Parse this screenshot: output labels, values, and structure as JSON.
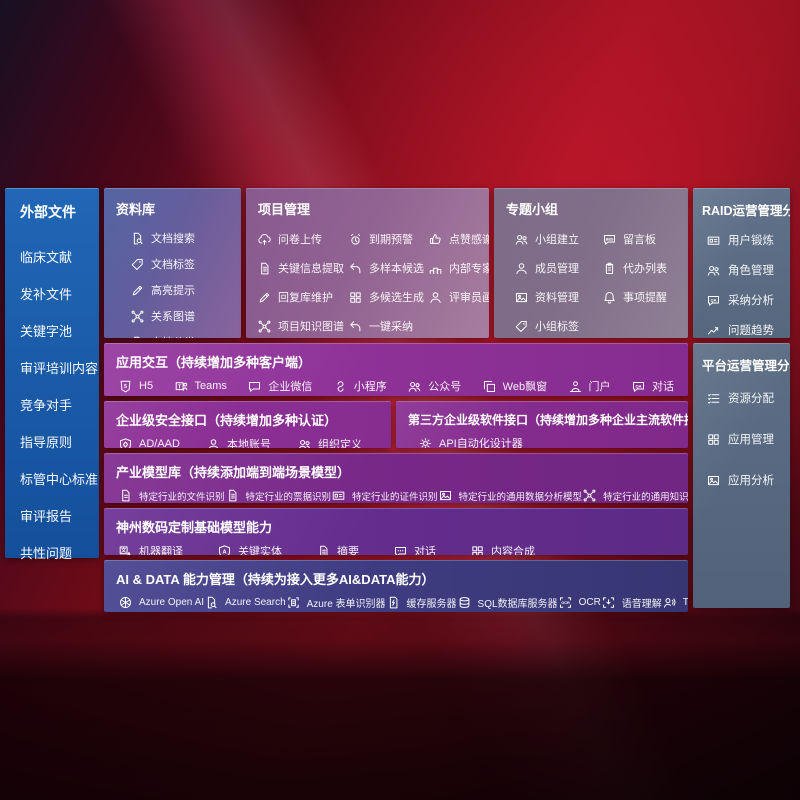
{
  "palette": {
    "background_red": "#9c1322",
    "sidebar_blue": "#1d5fae",
    "top_band_blue_purple": "#47589b",
    "top_band_mauve": "#8a5f8f",
    "top_band_gray": "#7d6e86",
    "slate_panel": "#5b6c84",
    "purple_row": "#8a3396",
    "deep_purple_row": "#6b2f93",
    "indigo_row": "#3f3d85",
    "text": "#ffffff"
  },
  "left_sidebar": {
    "title": "外部文件",
    "items": [
      "临床文献",
      "发补文件",
      "关键字池",
      "审评培训内容",
      "竞争对手",
      "指导原则",
      "标管中心标准",
      "审评报告",
      "共性问题"
    ]
  },
  "top_sections": [
    {
      "title": "资料库",
      "items": [
        {
          "label": "文档搜索",
          "icon": "doc-search"
        },
        {
          "label": "文档标签",
          "icon": "doc-tag"
        },
        {
          "label": "高亮提示",
          "icon": "highlight-pen"
        },
        {
          "label": "关系图谱",
          "icon": "relation-graph"
        },
        {
          "label": "文档分类",
          "icon": "doc-classify"
        }
      ]
    },
    {
      "title": "项目管理",
      "items": [
        {
          "label": "问卷上传",
          "icon": "cloud-upload"
        },
        {
          "label": "到期预警",
          "icon": "due-alarm"
        },
        {
          "label": "点赞感谢",
          "icon": "thumbs-up"
        },
        {
          "label": "关键信息提取",
          "icon": "info-extract"
        },
        {
          "label": "多样本候选",
          "icon": "multi-sample"
        },
        {
          "label": "内部专家排名",
          "icon": "expert-ranking"
        },
        {
          "label": "回复库维护",
          "icon": "reply-maintain"
        },
        {
          "label": "多候选生成",
          "icon": "multi-generate"
        },
        {
          "label": "评审员画像",
          "icon": "reviewer-profile"
        },
        {
          "label": "项目知识图谱",
          "icon": "knowledge-graph"
        },
        {
          "label": "一键采纳",
          "icon": "one-click-adopt"
        }
      ]
    },
    {
      "title": "专题小组",
      "items": [
        {
          "label": "小组建立",
          "icon": "group-create"
        },
        {
          "label": "留言板",
          "icon": "message-board"
        },
        {
          "label": "成员管理",
          "icon": "member-manage"
        },
        {
          "label": "代办列表",
          "icon": "todo-list"
        },
        {
          "label": "资料管理",
          "icon": "material-manage"
        },
        {
          "label": "事项提醒",
          "icon": "reminder"
        },
        {
          "label": "小组标签",
          "icon": "group-tag"
        }
      ]
    }
  ],
  "right_sidebar": [
    {
      "title": "RAID运营管理分析",
      "items": [
        {
          "label": "用户锻炼",
          "icon": "user-profile-card"
        },
        {
          "label": "角色管理",
          "icon": "role-manage"
        },
        {
          "label": "采纳分析",
          "icon": "adoption-analysis"
        },
        {
          "label": "问题趋势",
          "icon": "issue-trend"
        }
      ]
    },
    {
      "title": "平台运营管理分析",
      "items": [
        {
          "label": "资源分配",
          "icon": "resource-allocation"
        },
        {
          "label": "应用管理",
          "icon": "app-manage"
        },
        {
          "label": "应用分析",
          "icon": "app-analysis"
        }
      ]
    }
  ],
  "middle_rows": [
    {
      "title": "应用交互（持续增加多种客户端）",
      "items": [
        {
          "label": "H5",
          "icon": "h5"
        },
        {
          "label": "Teams",
          "icon": "teams"
        },
        {
          "label": "企业微信",
          "icon": "wechat-work"
        },
        {
          "label": "小程序",
          "icon": "miniprogram"
        },
        {
          "label": "公众号",
          "icon": "official-account"
        },
        {
          "label": "Web飘窗",
          "icon": "web-popup"
        },
        {
          "label": "门户",
          "icon": "portal"
        },
        {
          "label": "对话",
          "icon": "dialog"
        }
      ]
    },
    {
      "title": "企业级安全接口（持续增加多种认证）",
      "items": [
        {
          "label": "AD/AAD",
          "icon": "ad-aad"
        },
        {
          "label": "本地账号",
          "icon": "local-account"
        },
        {
          "label": "组织定义",
          "icon": "org-define"
        }
      ]
    },
    {
      "title": "第三方企业级软件接口（持续增加多种企业主流软件接口）",
      "items": [
        {
          "label": "API自动化设计器",
          "icon": "api-designer"
        }
      ]
    },
    {
      "title": "产业模型库（持续添加端到端场景模型）",
      "items": [
        {
          "label": "特定行业的文件识别",
          "icon": "file-recognition"
        },
        {
          "label": "特定行业的票据识别",
          "icon": "receipt-recognition"
        },
        {
          "label": "特定行业的证件识别",
          "icon": "certificate-recognition"
        },
        {
          "label": "特定行业的通用数据分析模型",
          "icon": "data-analysis-model"
        },
        {
          "label": "特定行业的通用知识图谱模型",
          "icon": "knowledge-graph-model"
        }
      ]
    },
    {
      "title": "神州数码定制基础模型能力",
      "items": [
        {
          "label": "机器翻译",
          "icon": "machine-translation"
        },
        {
          "label": "关键实体",
          "icon": "key-entity"
        },
        {
          "label": "摘要",
          "icon": "summary"
        },
        {
          "label": "对话",
          "icon": "dialogue"
        },
        {
          "label": "内容合成",
          "icon": "content-synthesis"
        }
      ]
    },
    {
      "title": "AI & DATA 能力管理（持续为接入更多AI&DATA能力）",
      "items": [
        {
          "label": "Azure Open AI",
          "icon": "azure-openai"
        },
        {
          "label": "Azure Search",
          "icon": "azure-search"
        },
        {
          "label": "Azure 表单识别器",
          "icon": "azure-form-recognizer"
        },
        {
          "label": "缓存服务器",
          "icon": "cache-server"
        },
        {
          "label": "SQL数据库服务器",
          "icon": "sql-database-server"
        },
        {
          "label": "OCR",
          "icon": "ocr"
        },
        {
          "label": "语音理解",
          "icon": "speech-understanding"
        },
        {
          "label": "TTS",
          "icon": "tts"
        }
      ]
    }
  ]
}
